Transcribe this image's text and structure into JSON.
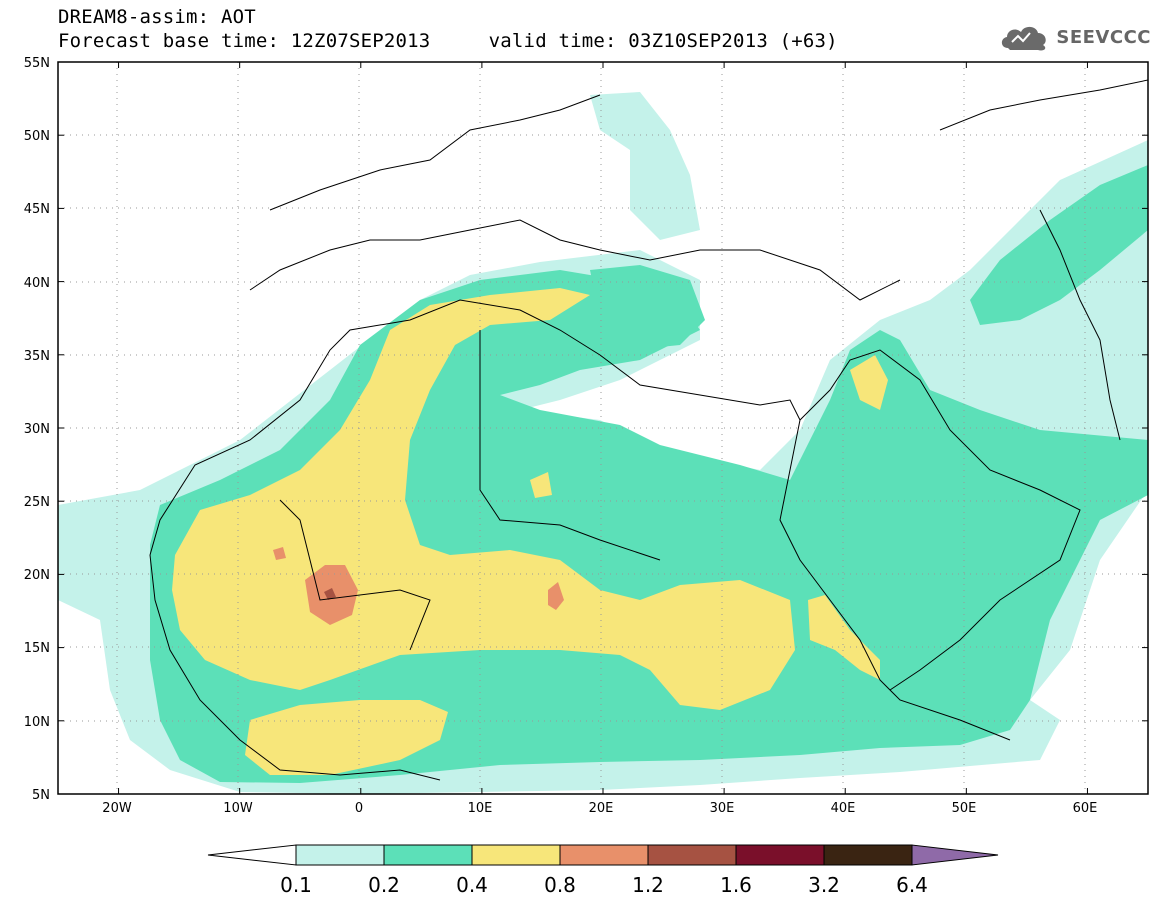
{
  "header": {
    "line1": "DREAM8-assim: AOT",
    "line2": "Forecast base time: 12Z07SEP2013     valid time: 03Z10SEP2013 (+63)",
    "logo_text": "SEEVCCC",
    "logo_icon": "cloud-icon"
  },
  "map": {
    "lon_range": [
      -25,
      65
    ],
    "lat_range": [
      5,
      55
    ],
    "lat_labels": [
      "55N",
      "50N",
      "45N",
      "40N",
      "35N",
      "30N",
      "25N",
      "20N",
      "15N",
      "10N",
      "5N"
    ],
    "lon_labels": [
      "20W",
      "10W",
      "0",
      "10E",
      "20E",
      "30E",
      "40E",
      "50E",
      "60E"
    ],
    "grid": "dotted"
  },
  "colorbar": {
    "labels": [
      "0.1",
      "0.2",
      "0.4",
      "0.8",
      "1.2",
      "1.6",
      "3.2",
      "6.4"
    ],
    "colors": [
      "#ffffff",
      "#c4f2ea",
      "#5ce0b8",
      "#f7e67a",
      "#e8906a",
      "#a65242",
      "#7a0f2a",
      "#3a2412",
      "#8f6aa8"
    ]
  }
}
